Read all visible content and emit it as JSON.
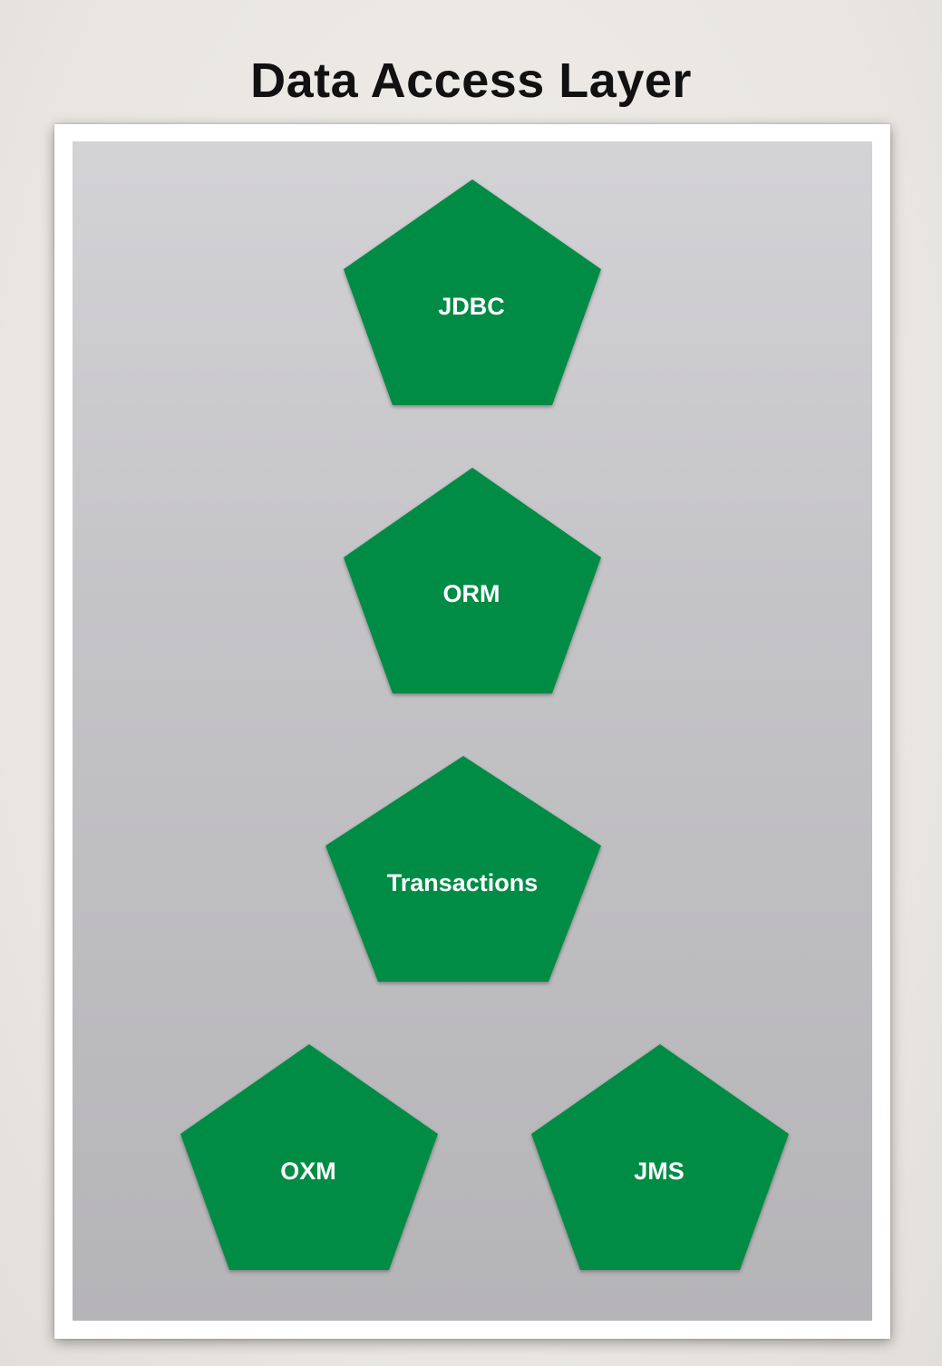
{
  "title": "Data Access Layer",
  "colors": {
    "pentagon_fill": "#068c45",
    "label_text": "#ffffff",
    "title_text": "#111111"
  },
  "modules": [
    {
      "id": "jdbc",
      "label": "JDBC"
    },
    {
      "id": "orm",
      "label": "ORM"
    },
    {
      "id": "transactions",
      "label": "Transactions"
    },
    {
      "id": "oxm",
      "label": "OXM"
    },
    {
      "id": "jms",
      "label": "JMS"
    }
  ]
}
